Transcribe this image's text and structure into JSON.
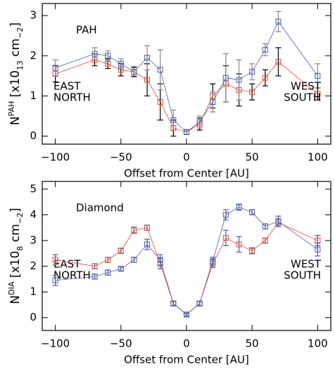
{
  "chart_data": [
    {
      "type": "line",
      "annotation": "PAH",
      "ylabel": [
        "N",
        "PAH",
        " [x10",
        "13",
        " cm",
        "−2",
        "]"
      ],
      "xlabel": "Offset from Center [AU]",
      "x": [
        -100,
        -70,
        -60,
        -50,
        -40,
        -30,
        -20,
        -10,
        0,
        10,
        20,
        30,
        40,
        50,
        60,
        70,
        100
      ],
      "series": [
        {
          "name": "EAST",
          "color": "#e8432a",
          "error_color": "#000000",
          "values": [
            1.55,
            1.9,
            1.8,
            1.65,
            1.6,
            1.4,
            0.85,
            0.2,
            0.1,
            0.3,
            1.0,
            1.3,
            1.15,
            1.1,
            1.45,
            1.85,
            1.05
          ],
          "errors": [
            0.2,
            0.15,
            0.12,
            0.15,
            0.12,
            0.4,
            0.45,
            0.2,
            0.06,
            0.15,
            0.3,
            0.45,
            0.4,
            0.2,
            0.2,
            0.35,
            0.15
          ]
        },
        {
          "name": "NORTH",
          "color": "#4a5cb0",
          "error_color": "#888888",
          "values": [
            1.7,
            2.05,
            2.0,
            1.8,
            1.6,
            1.95,
            1.65,
            0.4,
            0.1,
            0.35,
            0.85,
            1.45,
            1.4,
            1.6,
            2.15,
            2.85,
            1.5
          ],
          "errors": [
            0.2,
            0.15,
            0.12,
            0.12,
            0.1,
            0.3,
            0.5,
            0.25,
            0.06,
            0.15,
            0.25,
            0.6,
            0.5,
            0.2,
            0.15,
            0.25,
            0.3
          ]
        }
      ],
      "annotations": [
        {
          "text": "WEST",
          "color": "#e8432a"
        },
        {
          "text": "SOUTH",
          "color": "#4a5cb0"
        }
      ],
      "xlim": [
        -110,
        110
      ],
      "xticks": [
        {
          "value": -100,
          "label": "−100"
        },
        {
          "value": -50,
          "label": "−50"
        },
        0,
        50,
        100
      ],
      "ylim": [
        -0.2,
        3.3
      ],
      "yticks": [
        0,
        1,
        2,
        3
      ]
    },
    {
      "type": "line",
      "annotation": "Diamond",
      "ylabel": [
        "N",
        "DIA",
        " [x10",
        "8",
        " cm",
        "−2",
        "]"
      ],
      "xlabel": "Offset from Center [AU]",
      "x": [
        -100,
        -70,
        -60,
        -50,
        -40,
        -30,
        -20,
        -10,
        0,
        10,
        20,
        30,
        40,
        50,
        60,
        70,
        100
      ],
      "series": [
        {
          "name": "EAST",
          "color": "#e8432a",
          "error_color": "#4a5cb0",
          "values": [
            2.25,
            2.0,
            2.25,
            2.6,
            3.4,
            3.5,
            2.1,
            0.55,
            0.12,
            0.55,
            2.1,
            3.1,
            2.85,
            2.6,
            3.0,
            3.7,
            3.0
          ],
          "errors": [
            0.2,
            0.1,
            0.1,
            0.1,
            0.12,
            0.1,
            0.2,
            0.08,
            0.05,
            0.08,
            0.15,
            0.3,
            0.3,
            0.12,
            0.1,
            0.15,
            0.2
          ]
        },
        {
          "name": "NORTH",
          "color": "#4a5cb0",
          "error_color": "#4a5cb0",
          "values": [
            1.45,
            1.6,
            1.75,
            1.9,
            2.25,
            2.85,
            2.25,
            0.55,
            0.12,
            0.55,
            2.2,
            4.0,
            4.3,
            4.1,
            3.55,
            3.75,
            2.65
          ],
          "errors": [
            0.2,
            0.1,
            0.1,
            0.08,
            0.1,
            0.2,
            0.2,
            0.08,
            0.05,
            0.08,
            0.15,
            0.2,
            0.12,
            0.1,
            0.1,
            0.2,
            0.25
          ]
        }
      ],
      "annotations": [
        {
          "text": "WEST",
          "color": "#e8432a"
        },
        {
          "text": "SOUTH",
          "color": "#4a5cb0"
        }
      ],
      "xlim": [
        -110,
        110
      ],
      "xticks": [
        {
          "value": -100,
          "label": "−100"
        },
        {
          "value": -50,
          "label": "−50"
        },
        0,
        50,
        100
      ],
      "ylim": [
        -0.5,
        5.3
      ],
      "yticks": [
        0,
        1,
        2,
        3,
        4,
        5
      ]
    }
  ]
}
